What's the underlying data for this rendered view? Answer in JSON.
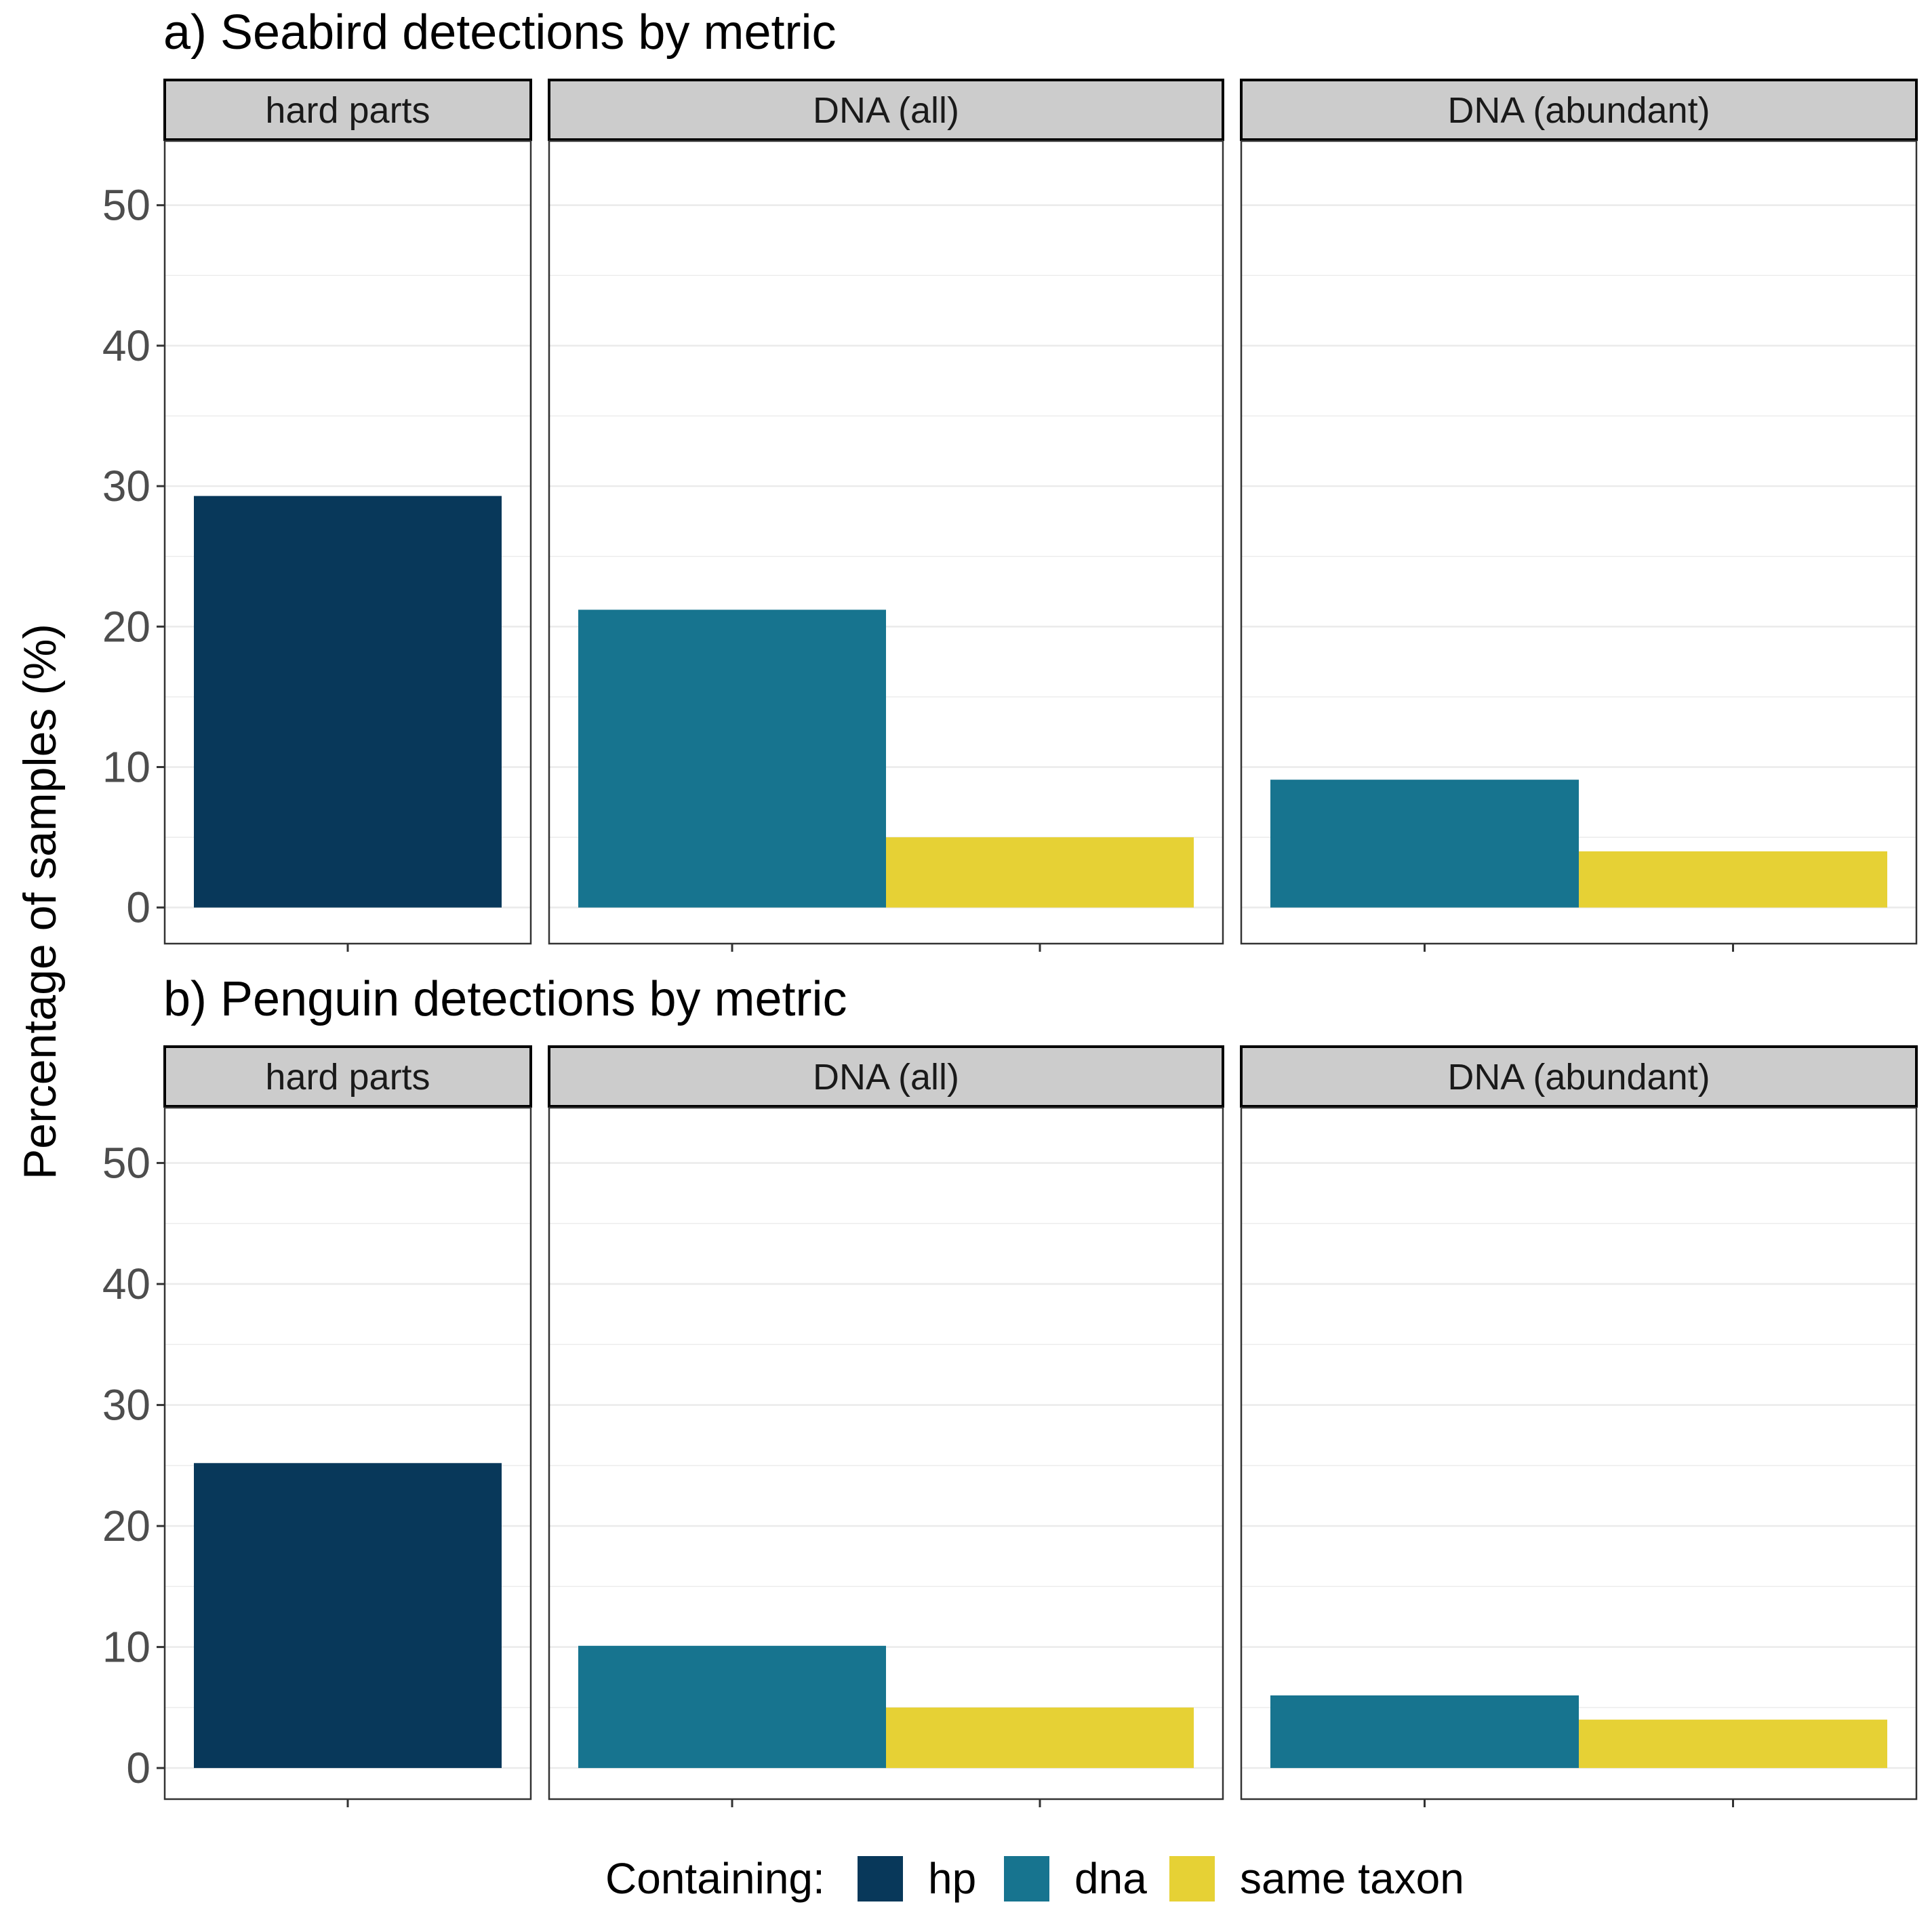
{
  "chart_data": [
    {
      "type": "bar",
      "title": "a) Seabird detections by metric",
      "ylabel": "Percentage of samples (%)",
      "ylim": [
        0,
        52
      ],
      "yticks": [
        0,
        10,
        20,
        30,
        40,
        50
      ],
      "grid": true,
      "facets": [
        {
          "label": "hard parts",
          "series": [
            {
              "name": "hp",
              "value": 29.3
            }
          ]
        },
        {
          "label": "DNA (all)",
          "series": [
            {
              "name": "dna",
              "value": 21.2
            },
            {
              "name": "same taxon",
              "value": 5.0
            }
          ]
        },
        {
          "label": "DNA (abundant)",
          "series": [
            {
              "name": "dna",
              "value": 9.1
            },
            {
              "name": "same taxon",
              "value": 4.0
            }
          ]
        }
      ]
    },
    {
      "type": "bar",
      "title": "b) Penguin detections by metric",
      "ylabel": "Percentage of samples (%)",
      "ylim": [
        0,
        52
      ],
      "yticks": [
        0,
        10,
        20,
        30,
        40,
        50
      ],
      "grid": true,
      "facets": [
        {
          "label": "hard parts",
          "series": [
            {
              "name": "hp",
              "value": 25.2
            }
          ]
        },
        {
          "label": "DNA (all)",
          "series": [
            {
              "name": "dna",
              "value": 10.1
            },
            {
              "name": "same taxon",
              "value": 5.0
            }
          ]
        },
        {
          "label": "DNA (abundant)",
          "series": [
            {
              "name": "dna",
              "value": 6.0
            },
            {
              "name": "same taxon",
              "value": 4.0
            }
          ]
        }
      ]
    }
  ],
  "y_axis_title": "Percentage of samples (%)",
  "legend": {
    "title": "Containing:",
    "placement": "bottom",
    "items": [
      {
        "name": "hp",
        "color": "#08385a"
      },
      {
        "name": "dna",
        "color": "#17748f"
      },
      {
        "name": "same taxon",
        "color": "#e6d135"
      }
    ]
  }
}
